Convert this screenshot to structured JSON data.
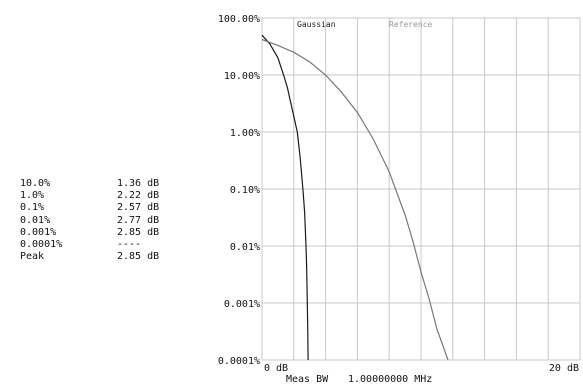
{
  "stats": [
    {
      "level": "10.0%",
      "value": "1.36 dB"
    },
    {
      "level": "1.0%",
      "value": "2.22 dB"
    },
    {
      "level": "0.1%",
      "value": "2.57 dB"
    },
    {
      "level": "0.01%",
      "value": "2.77 dB"
    },
    {
      "level": "0.001%",
      "value": "2.85 dB"
    },
    {
      "level": "0.0001%",
      "value": "----"
    },
    {
      "level": "Peak",
      "value": "2.85 dB"
    }
  ],
  "footer": {
    "meas_bw_label": "Meas BW",
    "meas_bw_value": "1.00000000 MHz"
  },
  "chart_data": {
    "type": "line",
    "xlabel": "",
    "ylabel": "",
    "x_unit": "dB",
    "xlim": [
      0,
      20
    ],
    "x_tick_labels": [
      "0 dB",
      "20 dB"
    ],
    "y_scale": "log",
    "ylim": [
      0.0001,
      100
    ],
    "y_tick_labels": [
      "100.00%",
      "10.00%",
      "1.00%",
      "0.10%",
      "0.01%",
      "0.001%",
      "0.0001%"
    ],
    "y_tick_values": [
      100,
      10,
      1,
      0.1,
      0.01,
      0.001,
      0.0001
    ],
    "grid": true,
    "legend": [
      "Gaussian",
      "Reference"
    ],
    "colors": {
      "gaussian": "#1a1a1a",
      "reference": "#777777",
      "grid": "#c8c8c8"
    },
    "series": [
      {
        "name": "Gaussian",
        "x": [
          0,
          0.5,
          1,
          1.36,
          1.6,
          1.9,
          2.22,
          2.4,
          2.57,
          2.68,
          2.77,
          2.81,
          2.85,
          2.88,
          2.9
        ],
        "y": [
          50,
          35,
          20,
          10,
          6,
          2.5,
          1,
          0.35,
          0.1,
          0.04,
          0.01,
          0.004,
          0.001,
          0.0003,
          0.0001
        ]
      },
      {
        "name": "Reference",
        "x": [
          0,
          1,
          2,
          3,
          4,
          5,
          6,
          7,
          8,
          9,
          9.5,
          10,
          10.5,
          11,
          11.7
        ],
        "y": [
          42,
          33,
          25,
          17,
          10,
          5,
          2.2,
          0.75,
          0.2,
          0.035,
          0.012,
          0.0035,
          0.0012,
          0.00035,
          0.0001
        ]
      }
    ]
  }
}
